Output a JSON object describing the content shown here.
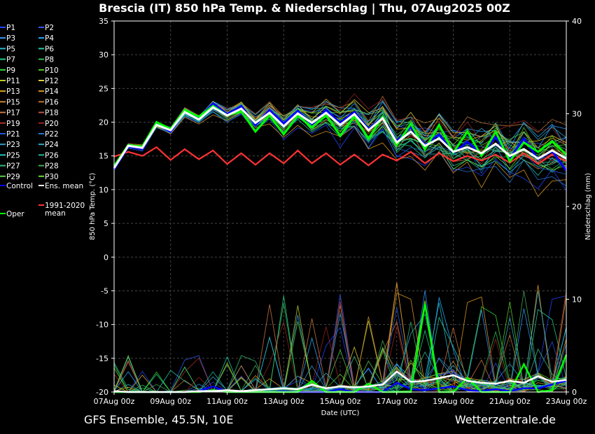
{
  "chart_data": {
    "type": "line",
    "title": "Brescia  (IT)  850 hPa Temp. & Niederschlag | Thu, 07Aug2025 00Z",
    "footer_left": "GFS Ensemble, 45.5N, 10E",
    "footer_right": "Wetterzentrale.de",
    "xlabel": "Date (UTC)",
    "ylabel": "850 hPa Temp. (°C)",
    "y2label": "Niederschlag (mm)",
    "ylim": [
      -20,
      35
    ],
    "y2lim": [
      0,
      40
    ],
    "yticks": [
      35,
      30,
      25,
      20,
      15,
      10,
      5,
      0,
      -5,
      -10,
      -15,
      -20
    ],
    "y2ticks": [
      40,
      30,
      20,
      10,
      0
    ],
    "xticks": [
      "07Aug 00z",
      "09Aug 00z",
      "11Aug 00z",
      "13Aug 00z",
      "15Aug 00z",
      "17Aug 00z",
      "19Aug 00z",
      "21Aug 00z",
      "23Aug 00z"
    ],
    "xtick_days": [
      0,
      2,
      4,
      6,
      8,
      10,
      12,
      14,
      16
    ],
    "x_range_days": [
      0,
      16
    ],
    "grid": true,
    "legend_position": "left",
    "legend": [
      {
        "label": "P1",
        "color": "#2244ff"
      },
      {
        "label": "P2",
        "color": "#3355ee"
      },
      {
        "label": "P3",
        "color": "#3399ff"
      },
      {
        "label": "P4",
        "color": "#22aaff"
      },
      {
        "label": "P5",
        "color": "#22bbcc"
      },
      {
        "label": "P6",
        "color": "#22ccaa"
      },
      {
        "label": "P7",
        "color": "#22cc88"
      },
      {
        "label": "P8",
        "color": "#33bb55"
      },
      {
        "label": "P9",
        "color": "#33dd33"
      },
      {
        "label": "P10",
        "color": "#55cc22"
      },
      {
        "label": "P11",
        "color": "#bbcc22"
      },
      {
        "label": "P12",
        "color": "#ddcc33"
      },
      {
        "label": "P13",
        "color": "#ddaa22"
      },
      {
        "label": "P14",
        "color": "#dd9922"
      },
      {
        "label": "P15",
        "color": "#cc8833"
      },
      {
        "label": "P16",
        "color": "#bb7733"
      },
      {
        "label": "P17",
        "color": "#cc7744"
      },
      {
        "label": "P18",
        "color": "#bb5544"
      },
      {
        "label": "P19",
        "color": "#aa3322"
      },
      {
        "label": "P20",
        "color": "#992222"
      },
      {
        "label": "P21",
        "color": "#2255dd"
      },
      {
        "label": "P22",
        "color": "#2277cc"
      },
      {
        "label": "P23",
        "color": "#3399cc"
      },
      {
        "label": "P24",
        "color": "#33aacc"
      },
      {
        "label": "P25",
        "color": "#22ccbb"
      },
      {
        "label": "P26",
        "color": "#22bb99"
      },
      {
        "label": "P27",
        "color": "#33bb77"
      },
      {
        "label": "P28",
        "color": "#44aa55"
      },
      {
        "label": "P29",
        "color": "#55cc44"
      },
      {
        "label": "P30",
        "color": "#66dd33"
      },
      {
        "label": "Control",
        "color": "#0000ff"
      },
      {
        "label": "Ens. mean",
        "color": "#ffffff"
      },
      {
        "label": "Oper",
        "color": "#00ff00"
      },
      {
        "label": "1991-2020 mean",
        "color": "#ff3333"
      }
    ],
    "temperature": {
      "x_days": [
        0,
        0.5,
        1,
        1.5,
        2,
        2.5,
        3,
        3.5,
        4,
        4.5,
        5,
        5.5,
        6,
        6.5,
        7,
        7.5,
        8,
        8.5,
        9,
        9.5,
        10,
        10.5,
        11,
        11.5,
        12,
        12.5,
        13,
        13.5,
        14,
        14.5,
        15,
        15.5,
        16
      ],
      "ens_mean": [
        13.2,
        16.5,
        16.2,
        19.6,
        18.8,
        21.5,
        20.4,
        22.2,
        21.0,
        22.0,
        19.9,
        21.4,
        19.4,
        21.3,
        19.9,
        21.4,
        19.6,
        21.2,
        18.8,
        20.6,
        17.0,
        18.6,
        16.5,
        17.6,
        15.6,
        16.3,
        15.4,
        16.8,
        15.0,
        16.0,
        14.6,
        15.8,
        14.6
      ],
      "control": [
        13.0,
        16.4,
        16.0,
        19.8,
        18.6,
        21.6,
        20.6,
        22.8,
        21.2,
        22.4,
        19.6,
        21.8,
        19.8,
        21.7,
        19.7,
        21.8,
        19.9,
        21.5,
        19.0,
        20.7,
        17.2,
        19.3,
        16.6,
        18.2,
        15.4,
        17.1,
        15.2,
        17.8,
        14.6,
        17.6,
        14.5,
        15.7,
        12.8
      ],
      "oper": [
        13.5,
        16.6,
        16.4,
        20.0,
        19.0,
        21.8,
        20.8,
        22.4,
        21.0,
        21.6,
        18.6,
        21.0,
        18.2,
        21.0,
        19.2,
        21.0,
        18.0,
        20.8,
        17.6,
        20.8,
        16.6,
        19.8,
        16.0,
        19.6,
        15.5,
        18.6,
        15.0,
        18.6,
        14.2,
        17.0,
        15.6,
        17.2,
        15.2
      ],
      "climate_mean": [
        14.9,
        15.6,
        15.0,
        16.3,
        14.4,
        16.0,
        14.5,
        15.8,
        13.8,
        15.4,
        13.7,
        15.4,
        13.9,
        15.8,
        13.9,
        15.4,
        13.7,
        15.2,
        13.6,
        15.2,
        14.3,
        15.6,
        13.9,
        15.4,
        14.2,
        15.0,
        14.3,
        15.2,
        14.0,
        15.4,
        13.8,
        15.2,
        14.2
      ],
      "members_spread": [
        0.3,
        0.4,
        0.5,
        0.6,
        0.8,
        1.0,
        1.3,
        1.6,
        1.9,
        2.2,
        2.4,
        2.6,
        2.8,
        3.0,
        3.2,
        3.4,
        3.6,
        3.8,
        3.9,
        4.0,
        4.1
      ]
    },
    "precipitation": {
      "x_days": [
        0,
        0.5,
        1,
        1.5,
        2,
        2.5,
        3,
        3.5,
        4,
        4.5,
        5,
        5.5,
        6,
        6.5,
        7,
        7.5,
        8,
        8.5,
        9,
        9.5,
        10,
        10.5,
        11,
        11.5,
        12,
        12.5,
        13,
        13.5,
        14,
        14.5,
        15,
        15.5,
        16
      ],
      "ens_mean": [
        0.1,
        0,
        0,
        0,
        0,
        0,
        0.1,
        0.1,
        0.2,
        0.1,
        0.2,
        0.3,
        0.4,
        0.3,
        0.8,
        0.4,
        0.6,
        0.5,
        0.6,
        0.8,
        2.2,
        1.1,
        1.2,
        1.5,
        1.8,
        1.2,
        1.0,
        0.9,
        1.2,
        1.0,
        1.7,
        1.1,
        1.3
      ],
      "control": [
        0,
        0,
        0,
        0,
        0,
        0,
        0.1,
        0.6,
        0,
        0,
        0,
        0,
        0.1,
        0,
        0,
        0,
        0.3,
        0,
        0,
        0,
        1.0,
        0.3,
        0.2,
        0.4,
        0.6,
        0.2,
        0.1,
        0.3,
        0.1,
        0.4,
        0.4,
        0.8,
        1.2
      ],
      "oper": [
        0,
        0,
        0,
        0,
        0,
        0,
        0,
        0.2,
        0,
        0,
        0,
        0,
        0,
        0,
        1.2,
        0,
        0,
        0,
        0.9,
        0,
        0,
        0,
        9.5,
        0,
        0,
        1.5,
        0,
        0,
        0,
        3.0,
        0,
        0.2,
        4.0
      ]
    }
  }
}
